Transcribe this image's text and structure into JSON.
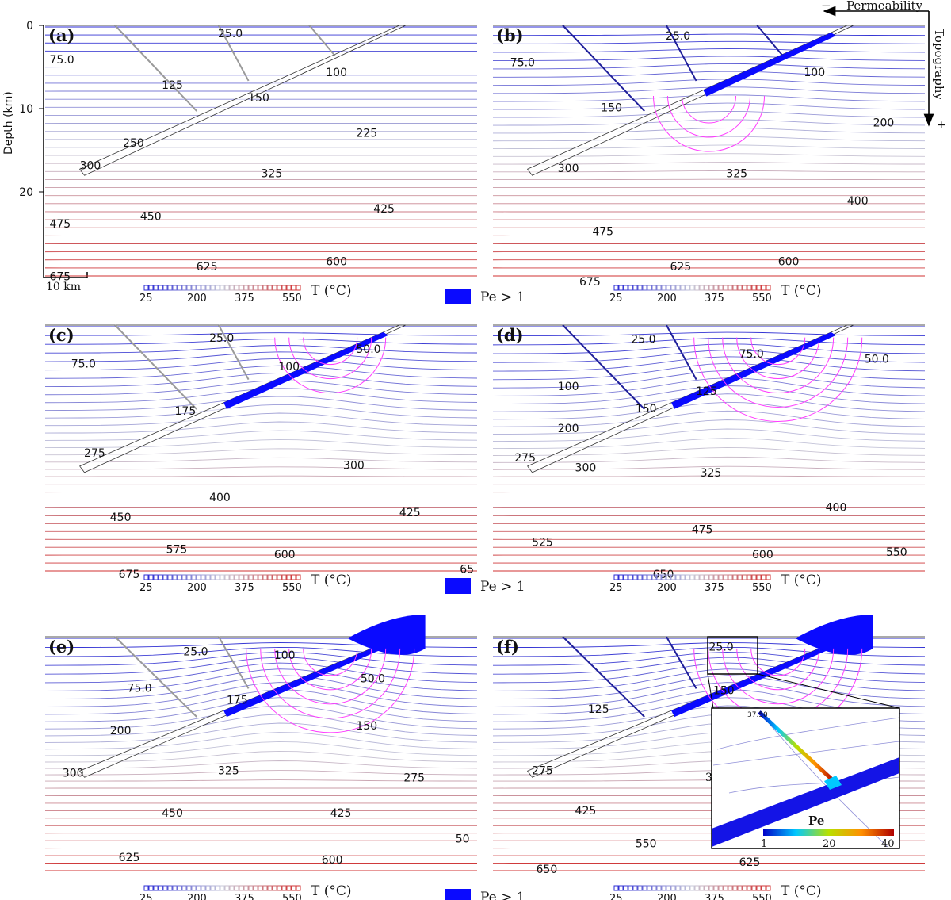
{
  "colors": {
    "cold": "#2b2bd4",
    "mid": "#c8c8d8",
    "hot": "#d03030",
    "streamline": "#ff3cff",
    "pe": "#0a0aff",
    "fault": "#9a9a9a",
    "fault_active": "#1f1f9a"
  },
  "axis": {
    "ylabel": "Depth (km)",
    "ticks": [
      "0",
      "10",
      "20"
    ],
    "scalebar": "10 km"
  },
  "temperature_colorbar": {
    "ticks": [
      "25",
      "200",
      "375",
      "550"
    ],
    "title": "T (°C)"
  },
  "pe_legend": {
    "label": "Pe > 1"
  },
  "arrows": {
    "permeability": "Permeability",
    "topography": "Topography",
    "minus": "−",
    "plus": "+"
  },
  "inset": {
    "title": "Pe",
    "ticks": [
      "1",
      "20",
      "40"
    ],
    "corner_label": "37.50",
    "partial_label": "3"
  },
  "panels": [
    {
      "label": "(a)",
      "isotherm_labels": [
        "25.0",
        "75.0",
        "125",
        "100",
        "150",
        "250",
        "225",
        "300",
        "325",
        "475",
        "450",
        "425",
        "675",
        "625",
        "600"
      ]
    },
    {
      "label": "(b)",
      "isotherm_labels": [
        "25.0",
        "75.0",
        "100",
        "150",
        "200",
        "300",
        "325",
        "400",
        "475",
        "625",
        "600",
        "675"
      ]
    },
    {
      "label": "(c)",
      "isotherm_labels": [
        "25.0",
        "75.0",
        "100",
        "50.0",
        "175",
        "275",
        "300",
        "400",
        "450",
        "425",
        "575",
        "600",
        "675",
        "65"
      ]
    },
    {
      "label": "(d)",
      "isotherm_labels": [
        "25.0",
        "75.0",
        "50.0",
        "100",
        "125",
        "150",
        "200",
        "275",
        "300",
        "325",
        "400",
        "475",
        "525",
        "600",
        "550",
        "650"
      ]
    },
    {
      "label": "(e)",
      "isotherm_labels": [
        "25.0",
        "75.0",
        "100",
        "50.0",
        "175",
        "200",
        "150",
        "300",
        "325",
        "275",
        "450",
        "425",
        "50",
        "625",
        "600"
      ]
    },
    {
      "label": "(f)",
      "isotherm_labels": [
        "25.0",
        "150",
        "125",
        "275",
        "425",
        "550",
        "625",
        "650"
      ]
    }
  ]
}
